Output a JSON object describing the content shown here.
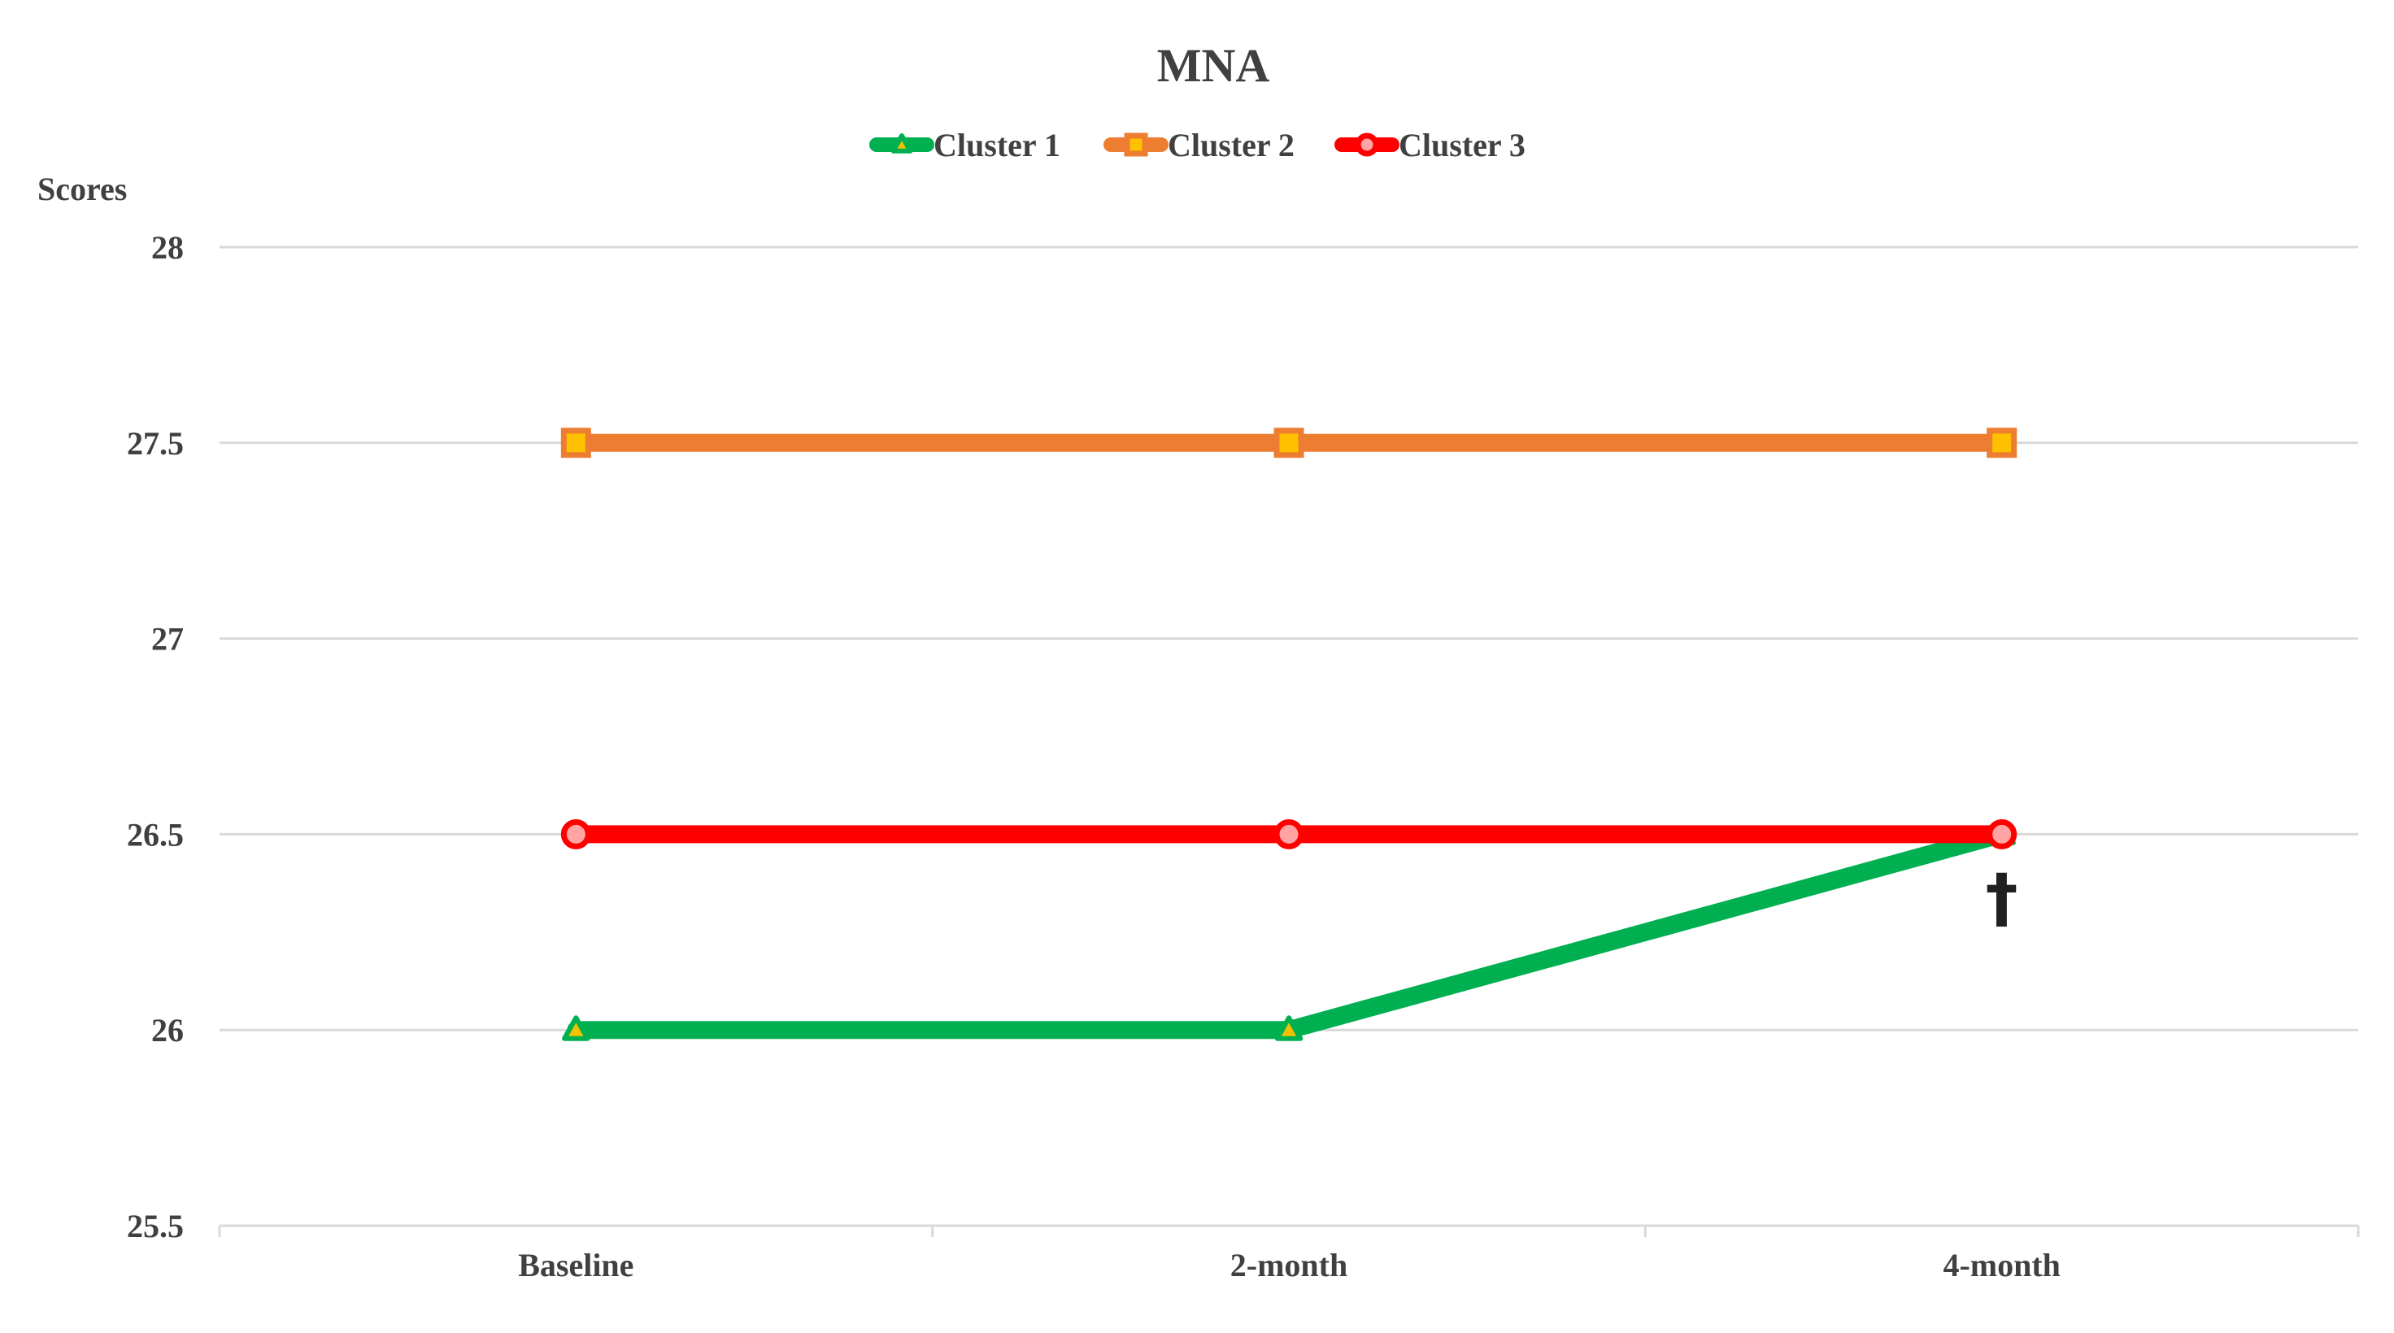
{
  "chart_data": {
    "type": "line",
    "title": "MNA",
    "ylabel": "Scores",
    "xlabel": "",
    "categories": [
      "Baseline",
      "2-month",
      "4-month"
    ],
    "ylim": [
      25.5,
      28
    ],
    "yticks": [
      25.5,
      26,
      26.5,
      27,
      27.5,
      28
    ],
    "ytick_labels": [
      "25.5",
      "26",
      "26.5",
      "27",
      "27.5",
      "28"
    ],
    "grid": true,
    "legend_position": "top",
    "series": [
      {
        "name": "Cluster 1",
        "values": [
          26,
          26,
          26.5
        ],
        "color": "#00b050",
        "marker": "triangle"
      },
      {
        "name": "Cluster 2",
        "values": [
          27.5,
          27.5,
          27.5
        ],
        "color": "#ed7d31",
        "marker": "square"
      },
      {
        "name": "Cluster 3",
        "values": [
          26.5,
          26.5,
          26.5
        ],
        "color": "#ff0000",
        "marker": "circle"
      }
    ],
    "annotations": [
      {
        "text": "†",
        "category": "4-month",
        "series": "Cluster 1"
      }
    ]
  }
}
